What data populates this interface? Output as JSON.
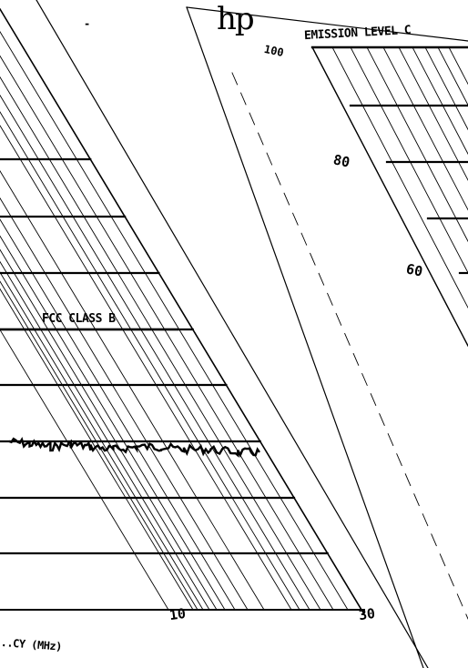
{
  "chart_data": [
    {
      "type": "line",
      "title": "",
      "xlabel": "...CY (MHz)",
      "ylabel": "",
      "x_tick_labels": [
        "10",
        "30"
      ],
      "y_tick_labels": [],
      "annotations": [
        "FCC CLASS B"
      ],
      "series": [
        {
          "values": [
            {
              "x": 1.8,
              "y": 0.5
            },
            {
              "x": 2.2,
              "y": 0.49
            },
            {
              "x": 2.7,
              "y": 0.48
            },
            {
              "x": 3.3,
              "y": 0.49
            },
            {
              "x": 4.0,
              "y": 0.48
            },
            {
              "x": 5.0,
              "y": 0.47
            },
            {
              "x": 6.3,
              "y": 0.48
            },
            {
              "x": 8.0,
              "y": 0.48
            },
            {
              "x": 10.0,
              "y": 0.47
            },
            {
              "x": 13.0,
              "y": 0.47
            },
            {
              "x": 17.0,
              "y": 0.46
            },
            {
              "x": 21.0,
              "y": 0.46
            }
          ]
        }
      ],
      "grid": true,
      "xscale": "log"
    },
    {
      "type": "line",
      "title": "EMISSION LEVEL C",
      "xlabel": "",
      "ylabel": "",
      "y_tick_labels": [
        "100",
        "80",
        "60"
      ],
      "series": [],
      "grid": true
    }
  ],
  "logo": "hp",
  "stray_mark": "-",
  "colors": {
    "ink": "#000000",
    "paper": "#ffffff"
  }
}
